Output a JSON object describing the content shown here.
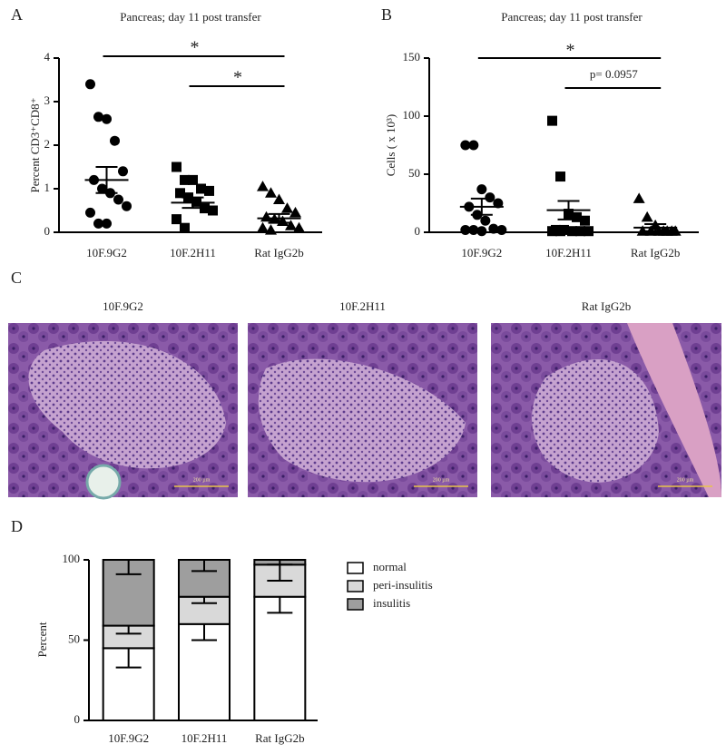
{
  "chart_data": [
    {
      "type": "strip",
      "panel": "A",
      "title": "Pancreas; day 11 post transfer",
      "ylabel": "Percent CD3⁺CD8⁺",
      "categories": [
        "10F.9G2",
        "10F.2H11",
        "Rat IgG2b"
      ],
      "ylim": [
        0,
        4
      ],
      "yticks": [
        0,
        1,
        2,
        3,
        4
      ],
      "groups": [
        {
          "marker": "circle",
          "values": [
            3.4,
            2.65,
            2.6,
            2.1,
            1.4,
            1.2,
            1.0,
            0.9,
            0.75,
            0.6,
            0.45,
            0.2,
            0.2
          ],
          "mean": 1.2,
          "sem": 0.3
        },
        {
          "marker": "square",
          "values": [
            1.5,
            1.2,
            1.2,
            1.0,
            0.95,
            0.9,
            0.8,
            0.7,
            0.55,
            0.5,
            0.3,
            0.1
          ],
          "mean": 0.68,
          "sem": 0.12
        },
        {
          "marker": "triangle",
          "values": [
            1.05,
            0.9,
            0.75,
            0.55,
            0.45,
            0.35,
            0.3,
            0.25,
            0.15,
            0.1,
            0.1,
            0.05
          ],
          "mean": 0.32,
          "sem": 0.1
        }
      ],
      "annotations": [
        "*",
        "*"
      ]
    },
    {
      "type": "strip",
      "panel": "B",
      "title": "Pancreas; day 11 post transfer",
      "ylabel": "Cells ( x 10³)",
      "categories": [
        "10F.9G2",
        "10F.2H11",
        "Rat IgG2b"
      ],
      "ylim": [
        0,
        150
      ],
      "yticks": [
        0,
        50,
        100,
        150
      ],
      "groups": [
        {
          "marker": "circle",
          "values": [
            75,
            75,
            37,
            30,
            25,
            22,
            15,
            10,
            3,
            2,
            2,
            2,
            1
          ],
          "mean": 22,
          "sem": 7
        },
        {
          "marker": "square",
          "values": [
            96,
            48,
            16,
            13,
            10,
            2,
            2,
            1,
            1,
            1,
            1,
            1
          ],
          "mean": 19,
          "sem": 8
        },
        {
          "marker": "triangle",
          "values": [
            29,
            13,
            6,
            1,
            1,
            1,
            1,
            1,
            1,
            1
          ],
          "mean": 4,
          "sem": 3
        }
      ],
      "annotations": [
        "*",
        "p= 0.0957"
      ]
    },
    {
      "type": "stacked_bar",
      "panel": "D",
      "ylabel": "Percent",
      "categories": [
        "10F.9G2",
        "10F.2H11",
        "Rat IgG2b"
      ],
      "ylim": [
        0,
        100
      ],
      "yticks": [
        0,
        50,
        100
      ],
      "series": [
        {
          "name": "normal",
          "color": "#ffffff",
          "values": [
            45,
            60,
            77
          ],
          "errors": [
            12,
            10,
            10
          ]
        },
        {
          "name": "peri-insulitis",
          "color": "#d9d9d9",
          "values": [
            14,
            17,
            20
          ],
          "errors": [
            5,
            4,
            10
          ]
        },
        {
          "name": "insulitis",
          "color": "#9e9e9e",
          "values": [
            41,
            23,
            3
          ],
          "errors": [
            9,
            7,
            3
          ]
        }
      ]
    }
  ],
  "histology": {
    "panel": "C",
    "captions": [
      "10F.9G2",
      "10F.2H11",
      "Rat IgG2b"
    ],
    "scale_bar": "200 µm"
  }
}
